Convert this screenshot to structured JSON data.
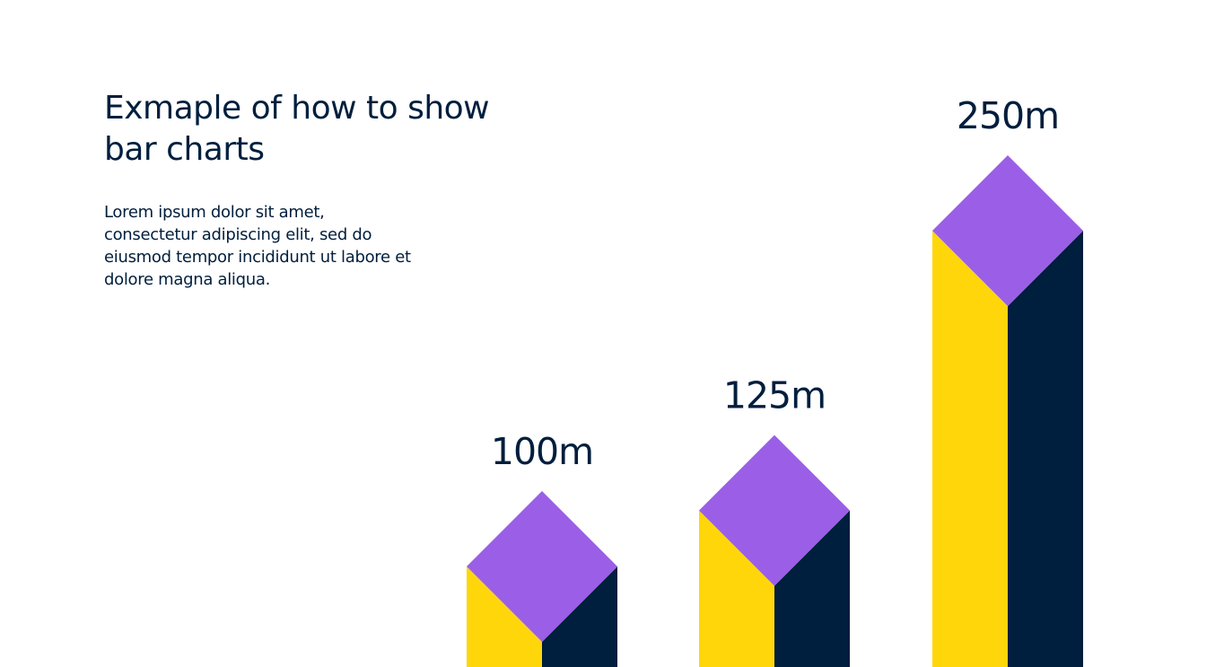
{
  "header": {
    "title_line1": "Exmaple of how to show",
    "title_line2": "bar charts"
  },
  "description": {
    "line1": "Lorem ipsum dolor sit amet,",
    "line2": "consectetur adipiscing elit, sed do",
    "line3": "eiusmod tempor incididunt ut labore et",
    "line4": "dolore magna aliqua."
  },
  "colors": {
    "top_face": "#9a5fe6",
    "left_face": "#ffd60a",
    "right_face": "#001e3d",
    "text": "#001e3d"
  },
  "chart_data": {
    "type": "bar",
    "categories": [
      "",
      "",
      ""
    ],
    "values": [
      100,
      125,
      250
    ],
    "value_labels": [
      "100m",
      "125m",
      "250m"
    ],
    "style": "isometric-3d",
    "title": "",
    "xlabel": "",
    "ylabel": ""
  }
}
